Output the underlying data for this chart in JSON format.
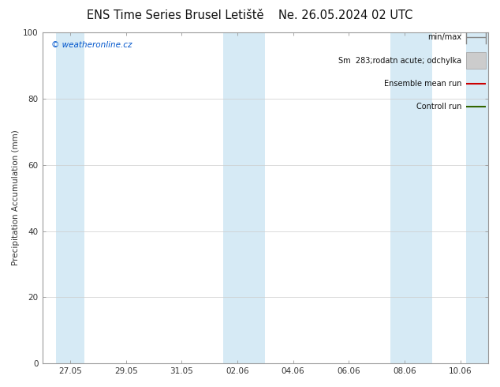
{
  "title": "ENS Time Series Brusel Letiště",
  "title2": "Ne. 26.05.2024 02 UTC",
  "ylabel": "Precipitation Accumulation (mm)",
  "ylim": [
    0,
    100
  ],
  "ytick_positions": [
    0,
    20,
    40,
    60,
    80,
    100
  ],
  "ytick_labels": [
    "0",
    "20",
    "40",
    "60",
    "80",
    "100"
  ],
  "xtick_labels": [
    "27.05",
    "29.05",
    "31.05",
    "02.06",
    "04.06",
    "06.06",
    "08.06",
    "10.06"
  ],
  "xtick_positions": [
    1,
    3,
    5,
    7,
    9,
    11,
    13,
    15
  ],
  "xlim": [
    0,
    16
  ],
  "bg_color": "#ffffff",
  "plot_bg_color": "#ffffff",
  "band_color": "#d6eaf5",
  "band_defs": [
    {
      "start": 0.5,
      "end": 1.5
    },
    {
      "start": 6.5,
      "end": 8.0
    },
    {
      "start": 12.5,
      "end": 14.0
    },
    {
      "start": 15.2,
      "end": 16.0
    }
  ],
  "watermark": "© weatheronline.cz",
  "watermark_color": "#0055cc",
  "title_fontsize": 10.5,
  "axis_label_fontsize": 7.5,
  "tick_fontsize": 7.5,
  "legend_fontsize": 7,
  "grid_color": "#cccccc",
  "legend_items": [
    {
      "label": "min/max",
      "type": "errorbar",
      "color": "#888888"
    },
    {
      "label": "Sm  283;rodatn acute; odchylka",
      "type": "band",
      "facecolor": "#cccccc",
      "edgecolor": "#aaaaaa"
    },
    {
      "label": "Ensemble mean run",
      "type": "line",
      "color": "#cc0000"
    },
    {
      "label": "Controll run",
      "type": "line",
      "color": "#336600"
    }
  ]
}
